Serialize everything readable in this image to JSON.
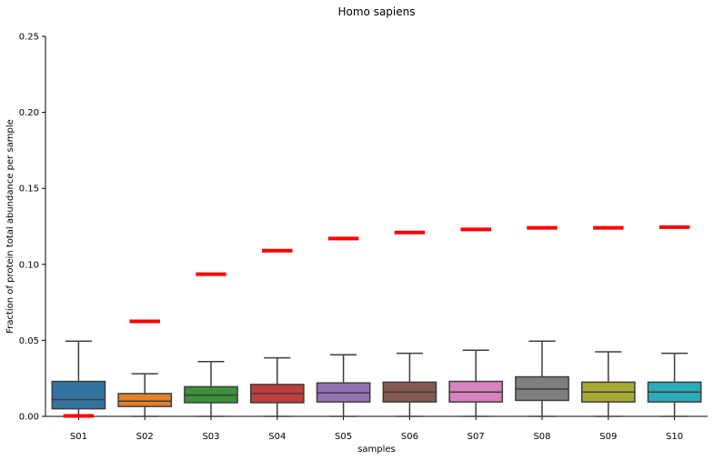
{
  "chart_data": {
    "type": "box",
    "title": "Homo sapiens",
    "xlabel": "samples",
    "ylabel": "Fraction of protein total abundance per sample",
    "ylim": [
      0,
      0.25
    ],
    "yticks": [
      "0.00",
      "0.05",
      "0.10",
      "0.15",
      "0.20",
      "0.25"
    ],
    "ytick_values": [
      0,
      0.05,
      0.1,
      0.15,
      0.2,
      0.25
    ],
    "grid": false,
    "categories": [
      "S01",
      "S02",
      "S03",
      "S04",
      "S05",
      "S06",
      "S07",
      "S08",
      "S09",
      "S10"
    ],
    "boxes": [
      {
        "sample": "S01",
        "color": "#3274a1",
        "whisker_low": 0.0,
        "q1": 0.005,
        "median": 0.011,
        "q3": 0.023,
        "whisker_high": 0.0495
      },
      {
        "sample": "S02",
        "color": "#e1812c",
        "whisker_low": 0.0,
        "q1": 0.0065,
        "median": 0.01,
        "q3": 0.015,
        "whisker_high": 0.028
      },
      {
        "sample": "S03",
        "color": "#3a923a",
        "whisker_low": 0.0,
        "q1": 0.009,
        "median": 0.014,
        "q3": 0.0195,
        "whisker_high": 0.036
      },
      {
        "sample": "S04",
        "color": "#c03d3e",
        "whisker_low": 0.0,
        "q1": 0.009,
        "median": 0.015,
        "q3": 0.021,
        "whisker_high": 0.0385
      },
      {
        "sample": "S05",
        "color": "#9372b2",
        "whisker_low": 0.0,
        "q1": 0.0095,
        "median": 0.0155,
        "q3": 0.022,
        "whisker_high": 0.0405
      },
      {
        "sample": "S06",
        "color": "#845b53",
        "whisker_low": 0.0,
        "q1": 0.0095,
        "median": 0.016,
        "q3": 0.0225,
        "whisker_high": 0.0415
      },
      {
        "sample": "S07",
        "color": "#d684bd",
        "whisker_low": 0.0,
        "q1": 0.0095,
        "median": 0.016,
        "q3": 0.023,
        "whisker_high": 0.0435
      },
      {
        "sample": "S08",
        "color": "#7f7f7f",
        "whisker_low": 0.0,
        "q1": 0.0105,
        "median": 0.018,
        "q3": 0.026,
        "whisker_high": 0.0495
      },
      {
        "sample": "S09",
        "color": "#a9aa35",
        "whisker_low": 0.0,
        "q1": 0.0095,
        "median": 0.016,
        "q3": 0.0225,
        "whisker_high": 0.0425
      },
      {
        "sample": "S10",
        "color": "#2eabb8",
        "whisker_low": 0.0,
        "q1": 0.0095,
        "median": 0.016,
        "q3": 0.0225,
        "whisker_high": 0.0415
      }
    ],
    "red_markers": {
      "color": "#ff0000",
      "values": [
        0.0003,
        0.0625,
        0.0935,
        0.109,
        0.117,
        0.121,
        0.123,
        0.124,
        0.124,
        0.1245
      ]
    }
  }
}
